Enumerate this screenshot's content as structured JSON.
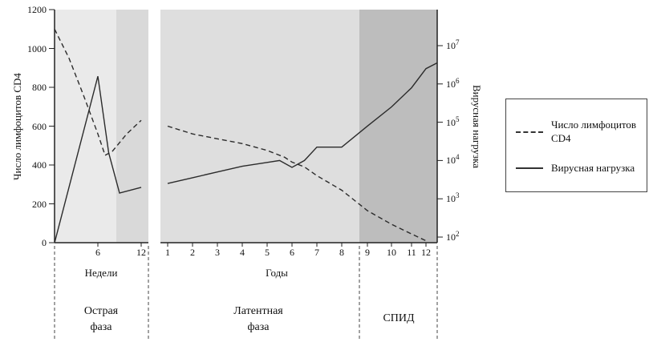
{
  "colors": {
    "weeks_bg": "#eaeaea",
    "weeks_band": "#d9d9d9",
    "latent_bg": "#dedede",
    "aids_bg": "#bdbdbd",
    "line": "#2b2b2b"
  },
  "chart_data": {
    "type": "line",
    "title": "",
    "axes": {
      "left": {
        "label": "Число лимфоцитов CD4",
        "range": [
          0,
          1200
        ],
        "ticks": [
          0,
          200,
          400,
          600,
          800,
          1000,
          1200
        ]
      },
      "right": {
        "label": "Вирусная нагрузка",
        "scale": "log10",
        "tick_exponents": [
          2,
          3,
          4,
          5,
          6,
          7
        ]
      },
      "x_weeks": {
        "label": "Недели",
        "ticks": [
          6,
          12
        ]
      },
      "x_years": {
        "label": "Годы",
        "ticks": [
          1,
          2,
          3,
          4,
          5,
          6,
          7,
          8,
          9,
          10,
          11,
          12
        ]
      }
    },
    "phases": {
      "acute": "Острая фаза",
      "latent": "Латентная фаза",
      "aids": "СПИД"
    },
    "legend": {
      "cd4": "Число лимфоцитов CD4",
      "viral": "Вирусная нагрузка"
    },
    "series": [
      {
        "name": "Число лимфоцитов CD4",
        "style": "dashed",
        "axis": "left",
        "weeks": [
          [
            0,
            1100
          ],
          [
            2,
            950
          ],
          [
            4,
            760
          ],
          [
            6,
            560
          ],
          [
            7,
            450
          ],
          [
            8,
            470
          ],
          [
            10,
            560
          ],
          [
            12,
            630
          ]
        ],
        "years": [
          [
            1,
            600
          ],
          [
            2,
            560
          ],
          [
            3,
            535
          ],
          [
            4,
            510
          ],
          [
            5,
            475
          ],
          [
            5.7,
            440
          ],
          [
            6,
            415
          ],
          [
            6.5,
            390
          ],
          [
            7,
            345
          ],
          [
            8,
            270
          ],
          [
            9,
            165
          ],
          [
            10,
            95
          ],
          [
            11,
            45
          ],
          [
            12,
            10
          ]
        ]
      },
      {
        "name": "Вирусная нагрузка",
        "style": "solid",
        "axis": "right_log10",
        "weeks": [
          [
            0,
            1.85
          ],
          [
            6,
            6.2
          ],
          [
            7.5,
            4.2
          ],
          [
            9,
            3.15
          ],
          [
            12,
            3.3
          ]
        ],
        "years": [
          [
            1,
            3.4
          ],
          [
            2,
            3.55
          ],
          [
            3,
            3.7
          ],
          [
            4,
            3.85
          ],
          [
            5,
            3.95
          ],
          [
            5.5,
            4.0
          ],
          [
            6,
            3.82
          ],
          [
            6.5,
            4.0
          ],
          [
            7,
            4.35
          ],
          [
            8,
            4.35
          ],
          [
            9,
            4.9
          ],
          [
            10,
            5.4
          ],
          [
            11,
            5.9
          ],
          [
            12,
            6.4
          ],
          [
            12.5,
            6.55
          ]
        ]
      }
    ]
  }
}
